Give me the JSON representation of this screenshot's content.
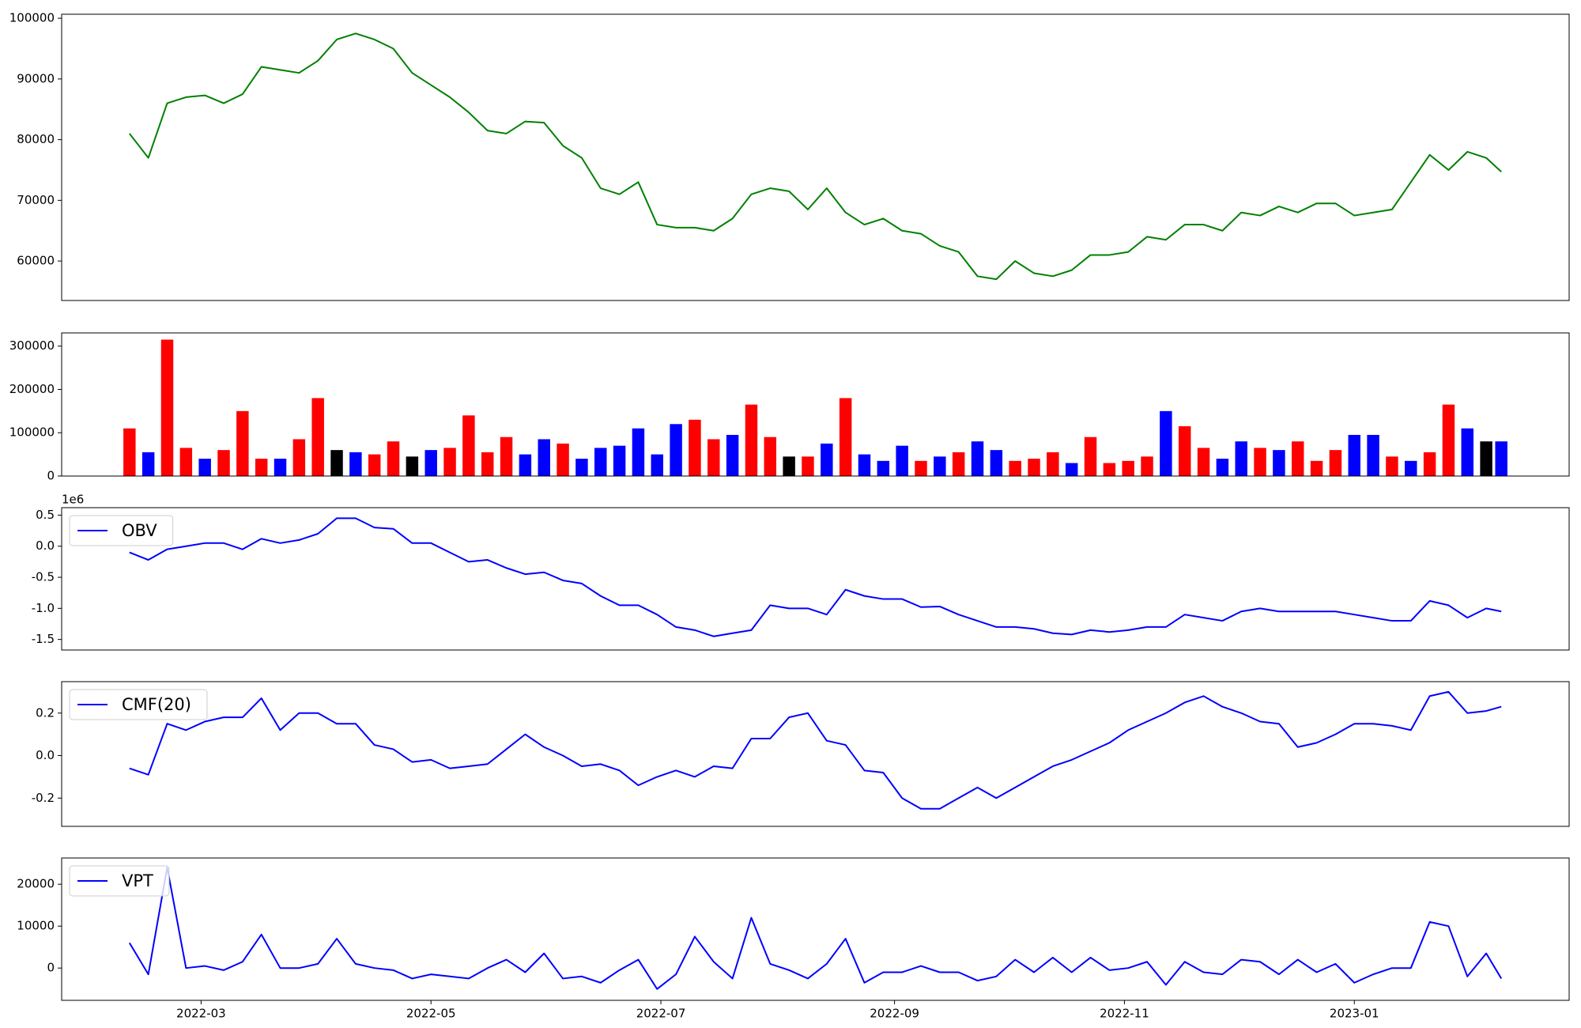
{
  "chart_data": [
    {
      "type": "line",
      "xlim": [
        "2022-01-23",
        "2023-02-27"
      ],
      "x": [
        "2022-02-10",
        "2022-02-15",
        "2022-02-20",
        "2022-02-25",
        "2022-03-02",
        "2022-03-07",
        "2022-03-12",
        "2022-03-17",
        "2022-03-22",
        "2022-03-27",
        "2022-04-01",
        "2022-04-06",
        "2022-04-11",
        "2022-04-16",
        "2022-04-21",
        "2022-04-26",
        "2022-05-01",
        "2022-05-06",
        "2022-05-11",
        "2022-05-16",
        "2022-05-21",
        "2022-05-26",
        "2022-05-31",
        "2022-06-05",
        "2022-06-10",
        "2022-06-15",
        "2022-06-20",
        "2022-06-25",
        "2022-06-30",
        "2022-07-05",
        "2022-07-10",
        "2022-07-15",
        "2022-07-20",
        "2022-07-25",
        "2022-07-30",
        "2022-08-04",
        "2022-08-09",
        "2022-08-14",
        "2022-08-19",
        "2022-08-24",
        "2022-08-29",
        "2022-09-03",
        "2022-09-08",
        "2022-09-13",
        "2022-09-18",
        "2022-09-23",
        "2022-09-28",
        "2022-10-03",
        "2022-10-08",
        "2022-10-13",
        "2022-10-18",
        "2022-10-23",
        "2022-10-28",
        "2022-11-02",
        "2022-11-07",
        "2022-11-12",
        "2022-11-17",
        "2022-11-22",
        "2022-11-27",
        "2022-12-02",
        "2022-12-07",
        "2022-12-12",
        "2022-12-17",
        "2022-12-22",
        "2022-12-27",
        "2023-01-01",
        "2023-01-06",
        "2023-01-11",
        "2023-01-16",
        "2023-01-21",
        "2023-01-26",
        "2023-01-31",
        "2023-02-05",
        "2023-02-09"
      ],
      "series": [
        {
          "color": "#008000",
          "values": [
            81000,
            77000,
            86000,
            87000,
            87300,
            86000,
            87500,
            92000,
            91500,
            91000,
            93000,
            96500,
            97500,
            96500,
            95000,
            91000,
            89000,
            87000,
            84500,
            81500,
            81000,
            83000,
            82800,
            79000,
            77000,
            72000,
            71000,
            73000,
            66000,
            65500,
            65500,
            65000,
            67000,
            71000,
            72000,
            71500,
            68500,
            72000,
            68000,
            66000,
            67000,
            65000,
            64500,
            62500,
            61500,
            57500,
            57000,
            60000,
            58000,
            57500,
            58500,
            61000,
            61000,
            61500,
            64000,
            63500,
            66000,
            66000,
            65000,
            68000,
            67500,
            69000,
            68000,
            69500,
            69500,
            67500,
            68000,
            68500,
            73000,
            77500,
            75000,
            78000,
            77000,
            74700
          ]
        }
      ],
      "ylim": [
        53500,
        100667
      ],
      "yticks": [
        60000,
        70000,
        80000,
        90000,
        100000
      ]
    },
    {
      "type": "bar",
      "xlim": [
        "2022-01-23",
        "2023-02-27"
      ],
      "x": [
        "2022-02-10",
        "2022-02-15",
        "2022-02-20",
        "2022-02-25",
        "2022-03-02",
        "2022-03-07",
        "2022-03-12",
        "2022-03-17",
        "2022-03-22",
        "2022-03-27",
        "2022-04-01",
        "2022-04-06",
        "2022-04-11",
        "2022-04-16",
        "2022-04-21",
        "2022-04-26",
        "2022-05-01",
        "2022-05-06",
        "2022-05-11",
        "2022-05-16",
        "2022-05-21",
        "2022-05-26",
        "2022-05-31",
        "2022-06-05",
        "2022-06-10",
        "2022-06-15",
        "2022-06-20",
        "2022-06-25",
        "2022-06-30",
        "2022-07-05",
        "2022-07-10",
        "2022-07-15",
        "2022-07-20",
        "2022-07-25",
        "2022-07-30",
        "2022-08-04",
        "2022-08-09",
        "2022-08-14",
        "2022-08-19",
        "2022-08-24",
        "2022-08-29",
        "2022-09-03",
        "2022-09-08",
        "2022-09-13",
        "2022-09-18",
        "2022-09-23",
        "2022-09-28",
        "2022-10-03",
        "2022-10-08",
        "2022-10-13",
        "2022-10-18",
        "2022-10-23",
        "2022-10-28",
        "2022-11-02",
        "2022-11-07",
        "2022-11-12",
        "2022-11-17",
        "2022-11-22",
        "2022-11-27",
        "2022-12-02",
        "2022-12-07",
        "2022-12-12",
        "2022-12-17",
        "2022-12-22",
        "2022-12-27",
        "2023-01-01",
        "2023-01-06",
        "2023-01-11",
        "2023-01-16",
        "2023-01-21",
        "2023-01-26",
        "2023-01-31",
        "2023-02-05",
        "2023-02-09"
      ],
      "values": [
        110000,
        55000,
        315000,
        65000,
        40000,
        60000,
        150000,
        40000,
        40000,
        85000,
        180000,
        60000,
        55000,
        50000,
        80000,
        45000,
        60000,
        65000,
        140000,
        55000,
        90000,
        50000,
        85000,
        75000,
        40000,
        65000,
        70000,
        110000,
        50000,
        120000,
        130000,
        85000,
        95000,
        165000,
        90000,
        45000,
        45000,
        75000,
        180000,
        50000,
        35000,
        70000,
        35000,
        45000,
        55000,
        80000,
        60000,
        35000,
        40000,
        55000,
        30000,
        90000,
        30000,
        35000,
        45000,
        150000,
        115000,
        65000,
        40000,
        80000,
        65000,
        60000,
        80000,
        35000,
        60000,
        95000,
        95000,
        45000,
        35000,
        55000,
        165000,
        110000,
        80000,
        80000
      ],
      "colors": [
        "#ff0000",
        "#0000ff",
        "#ff0000",
        "#ff0000",
        "#0000ff",
        "#ff0000",
        "#ff0000",
        "#ff0000",
        "#0000ff",
        "#ff0000",
        "#ff0000",
        "#000000",
        "#0000ff",
        "#ff0000",
        "#ff0000",
        "#000000",
        "#0000ff",
        "#ff0000",
        "#ff0000",
        "#ff0000",
        "#ff0000",
        "#0000ff",
        "#0000ff",
        "#ff0000",
        "#0000ff",
        "#0000ff",
        "#0000ff",
        "#0000ff",
        "#0000ff",
        "#0000ff",
        "#ff0000",
        "#ff0000",
        "#0000ff",
        "#ff0000",
        "#ff0000",
        "#000000",
        "#ff0000",
        "#0000ff",
        "#ff0000",
        "#0000ff",
        "#0000ff",
        "#0000ff",
        "#ff0000",
        "#0000ff",
        "#ff0000",
        "#0000ff",
        "#0000ff",
        "#ff0000",
        "#ff0000",
        "#ff0000",
        "#0000ff",
        "#ff0000",
        "#ff0000",
        "#ff0000",
        "#ff0000",
        "#0000ff",
        "#ff0000",
        "#ff0000",
        "#0000ff",
        "#0000ff",
        "#ff0000",
        "#0000ff",
        "#ff0000",
        "#ff0000",
        "#ff0000",
        "#0000ff",
        "#0000ff",
        "#ff0000",
        "#0000ff",
        "#ff0000",
        "#ff0000",
        "#0000ff",
        "#000000",
        "#0000ff"
      ],
      "ylim": [
        0,
        330500
      ],
      "yticks": [
        0,
        100000,
        200000,
        300000
      ]
    },
    {
      "type": "line",
      "xlim": [
        "2022-01-23",
        "2023-02-27"
      ],
      "offset_text": "1e6",
      "legend": "upper left",
      "x": [
        "2022-02-10",
        "2022-02-15",
        "2022-02-20",
        "2022-02-25",
        "2022-03-02",
        "2022-03-07",
        "2022-03-12",
        "2022-03-17",
        "2022-03-22",
        "2022-03-27",
        "2022-04-01",
        "2022-04-06",
        "2022-04-11",
        "2022-04-16",
        "2022-04-21",
        "2022-04-26",
        "2022-05-01",
        "2022-05-06",
        "2022-05-11",
        "2022-05-16",
        "2022-05-21",
        "2022-05-26",
        "2022-05-31",
        "2022-06-05",
        "2022-06-10",
        "2022-06-15",
        "2022-06-20",
        "2022-06-25",
        "2022-06-30",
        "2022-07-05",
        "2022-07-10",
        "2022-07-15",
        "2022-07-20",
        "2022-07-25",
        "2022-07-30",
        "2022-08-04",
        "2022-08-09",
        "2022-08-14",
        "2022-08-19",
        "2022-08-24",
        "2022-08-29",
        "2022-09-03",
        "2022-09-08",
        "2022-09-13",
        "2022-09-18",
        "2022-09-23",
        "2022-09-28",
        "2022-10-03",
        "2022-10-08",
        "2022-10-13",
        "2022-10-18",
        "2022-10-23",
        "2022-10-28",
        "2022-11-02",
        "2022-11-07",
        "2022-11-12",
        "2022-11-17",
        "2022-11-22",
        "2022-11-27",
        "2022-12-02",
        "2022-12-07",
        "2022-12-12",
        "2022-12-17",
        "2022-12-22",
        "2022-12-27",
        "2023-01-01",
        "2023-01-06",
        "2023-01-11",
        "2023-01-16",
        "2023-01-21",
        "2023-01-26",
        "2023-01-31",
        "2023-02-05",
        "2023-02-09"
      ],
      "series": [
        {
          "name": "OBV",
          "color": "#0000ff",
          "values": [
            -0.1,
            -0.22,
            -0.05,
            0.0,
            0.05,
            0.05,
            -0.05,
            0.12,
            0.05,
            0.1,
            0.2,
            0.45,
            0.45,
            0.3,
            0.28,
            0.05,
            0.05,
            -0.1,
            -0.25,
            -0.22,
            -0.35,
            -0.45,
            -0.42,
            -0.55,
            -0.6,
            -0.8,
            -0.95,
            -0.95,
            -1.1,
            -1.3,
            -1.35,
            -1.45,
            -1.4,
            -1.35,
            -0.95,
            -1.0,
            -1.0,
            -1.1,
            -0.7,
            -0.8,
            -0.85,
            -0.85,
            -0.98,
            -0.97,
            -1.1,
            -1.2,
            -1.3,
            -1.3,
            -1.33,
            -1.4,
            -1.42,
            -1.35,
            -1.38,
            -1.35,
            -1.3,
            -1.3,
            -1.1,
            -1.15,
            -1.2,
            -1.05,
            -1.0,
            -1.05,
            -1.05,
            -1.05,
            -1.05,
            -1.1,
            -1.15,
            -1.2,
            -1.2,
            -0.88,
            -0.95,
            -1.15,
            -1.0,
            -1.05
          ]
        }
      ],
      "ylim": [
        -1.67,
        0.62
      ],
      "yticks": [
        -1.5,
        {
          "value": -1,
          "label": "-1.0"
        },
        -0.5,
        {
          "value": 0,
          "label": "0.0"
        },
        0.5
      ]
    },
    {
      "type": "line",
      "xlim": [
        "2022-01-23",
        "2023-02-27"
      ],
      "legend": "upper left",
      "x": [
        "2022-02-10",
        "2022-02-15",
        "2022-02-20",
        "2022-02-25",
        "2022-03-02",
        "2022-03-07",
        "2022-03-12",
        "2022-03-17",
        "2022-03-22",
        "2022-03-27",
        "2022-04-01",
        "2022-04-06",
        "2022-04-11",
        "2022-04-16",
        "2022-04-21",
        "2022-04-26",
        "2022-05-01",
        "2022-05-06",
        "2022-05-11",
        "2022-05-16",
        "2022-05-21",
        "2022-05-26",
        "2022-05-31",
        "2022-06-05",
        "2022-06-10",
        "2022-06-15",
        "2022-06-20",
        "2022-06-25",
        "2022-06-30",
        "2022-07-05",
        "2022-07-10",
        "2022-07-15",
        "2022-07-20",
        "2022-07-25",
        "2022-07-30",
        "2022-08-04",
        "2022-08-09",
        "2022-08-14",
        "2022-08-19",
        "2022-08-24",
        "2022-08-29",
        "2022-09-03",
        "2022-09-08",
        "2022-09-13",
        "2022-09-18",
        "2022-09-23",
        "2022-09-28",
        "2022-10-03",
        "2022-10-08",
        "2022-10-13",
        "2022-10-18",
        "2022-10-23",
        "2022-10-28",
        "2022-11-02",
        "2022-11-07",
        "2022-11-12",
        "2022-11-17",
        "2022-11-22",
        "2022-11-27",
        "2022-12-02",
        "2022-12-07",
        "2022-12-12",
        "2022-12-17",
        "2022-12-22",
        "2022-12-27",
        "2023-01-01",
        "2023-01-06",
        "2023-01-11",
        "2023-01-16",
        "2023-01-21",
        "2023-01-26",
        "2023-01-31",
        "2023-02-05",
        "2023-02-09"
      ],
      "series": [
        {
          "name": "CMF(20)",
          "color": "#0000ff",
          "values": [
            -0.06,
            -0.09,
            0.15,
            0.12,
            0.16,
            0.18,
            0.18,
            0.27,
            0.12,
            0.2,
            0.2,
            0.15,
            0.15,
            0.05,
            0.03,
            -0.03,
            -0.02,
            -0.06,
            -0.05,
            -0.04,
            0.03,
            0.1,
            0.04,
            0.0,
            -0.05,
            -0.04,
            -0.07,
            -0.14,
            -0.1,
            -0.07,
            -0.1,
            -0.05,
            -0.06,
            0.08,
            0.08,
            0.18,
            0.2,
            0.07,
            0.05,
            -0.07,
            -0.08,
            -0.2,
            -0.25,
            -0.25,
            -0.2,
            -0.15,
            -0.2,
            -0.15,
            -0.1,
            -0.05,
            -0.02,
            0.02,
            0.06,
            0.12,
            0.16,
            0.2,
            0.25,
            0.28,
            0.23,
            0.2,
            0.16,
            0.15,
            0.04,
            0.06,
            0.1,
            0.15,
            0.15,
            0.14,
            0.12,
            0.28,
            0.3,
            0.2,
            0.21,
            0.23
          ]
        }
      ],
      "ylim": [
        -0.333,
        0.348
      ],
      "yticks": [
        -0.2,
        {
          "value": 0,
          "label": "0.0"
        },
        0.2
      ]
    },
    {
      "type": "line",
      "xlim": [
        "2022-01-23",
        "2023-02-27"
      ],
      "legend": "upper left",
      "x": [
        "2022-02-10",
        "2022-02-15",
        "2022-02-20",
        "2022-02-25",
        "2022-03-02",
        "2022-03-07",
        "2022-03-12",
        "2022-03-17",
        "2022-03-22",
        "2022-03-27",
        "2022-04-01",
        "2022-04-06",
        "2022-04-11",
        "2022-04-16",
        "2022-04-21",
        "2022-04-26",
        "2022-05-01",
        "2022-05-06",
        "2022-05-11",
        "2022-05-16",
        "2022-05-21",
        "2022-05-26",
        "2022-05-31",
        "2022-06-05",
        "2022-06-10",
        "2022-06-15",
        "2022-06-20",
        "2022-06-25",
        "2022-06-30",
        "2022-07-05",
        "2022-07-10",
        "2022-07-15",
        "2022-07-20",
        "2022-07-25",
        "2022-07-30",
        "2022-08-04",
        "2022-08-09",
        "2022-08-14",
        "2022-08-19",
        "2022-08-24",
        "2022-08-29",
        "2022-09-03",
        "2022-09-08",
        "2022-09-13",
        "2022-09-18",
        "2022-09-23",
        "2022-09-28",
        "2022-10-03",
        "2022-10-08",
        "2022-10-13",
        "2022-10-18",
        "2022-10-23",
        "2022-10-28",
        "2022-11-02",
        "2022-11-07",
        "2022-11-12",
        "2022-11-17",
        "2022-11-22",
        "2022-11-27",
        "2022-12-02",
        "2022-12-07",
        "2022-12-12",
        "2022-12-17",
        "2022-12-22",
        "2022-12-27",
        "2023-01-01",
        "2023-01-06",
        "2023-01-11",
        "2023-01-16",
        "2023-01-21",
        "2023-01-26",
        "2023-01-31",
        "2023-02-05",
        "2023-02-09"
      ],
      "series": [
        {
          "name": "VPT",
          "color": "#0000ff",
          "values": [
            6000,
            -1500,
            24000,
            0,
            500,
            -500,
            1500,
            8000,
            0,
            0,
            1000,
            7000,
            1000,
            0,
            -500,
            -2500,
            -1500,
            -2000,
            -2500,
            0,
            2000,
            -1000,
            3500,
            -2500,
            -2000,
            -3500,
            -500,
            2000,
            -5000,
            -1500,
            7500,
            1500,
            -2500,
            12000,
            1000,
            -500,
            -2500,
            1000,
            7000,
            -3500,
            -1000,
            -1000,
            500,
            -1000,
            -1000,
            -3000,
            -2000,
            2000,
            -1000,
            2500,
            -1000,
            2500,
            -500,
            0,
            1500,
            -4000,
            1500,
            -1000,
            -1500,
            2000,
            1500,
            -1500,
            2000,
            -1000,
            1000,
            -3500,
            -1500,
            0,
            0,
            11000,
            10000,
            -2000,
            3500,
            -2500
          ]
        }
      ],
      "ylim": [
        -7700,
        26260
      ],
      "yticks": [
        0,
        10000,
        20000
      ],
      "xticks": [
        {
          "value": "2022-03-01",
          "label": "2022-03"
        },
        {
          "value": "2022-05-01",
          "label": "2022-05"
        },
        {
          "value": "2022-07-01",
          "label": "2022-07"
        },
        {
          "value": "2022-09-01",
          "label": "2022-09"
        },
        {
          "value": "2022-11-01",
          "label": "2022-11"
        },
        {
          "value": "2023-01-01",
          "label": "2023-01"
        }
      ]
    }
  ]
}
